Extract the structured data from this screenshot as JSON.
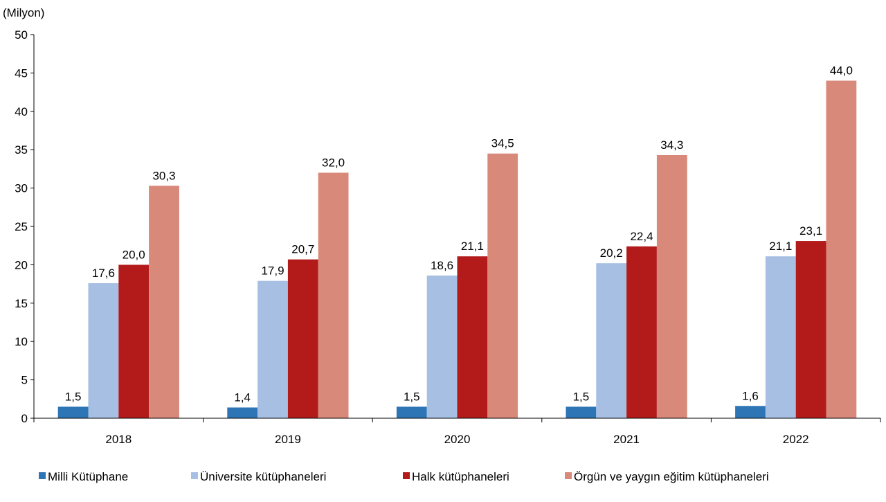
{
  "chart_data": {
    "type": "bar",
    "ylabel": "(Milyon)",
    "ylim": [
      0,
      50
    ],
    "yticks": [
      0,
      5,
      10,
      15,
      20,
      25,
      30,
      35,
      40,
      45,
      50
    ],
    "categories": [
      "2018",
      "2019",
      "2020",
      "2021",
      "2022"
    ],
    "legend_position": "bottom",
    "grid": false,
    "series": [
      {
        "name": "Milli Kütüphane",
        "color": "#2e75b6",
        "values": [
          1.5,
          1.4,
          1.5,
          1.5,
          1.6
        ],
        "labels": [
          "1,5",
          "1,4",
          "1,5",
          "1,5",
          "1,6"
        ]
      },
      {
        "name": "Üniversite kütüphaneleri",
        "color": "#a6bfe3",
        "values": [
          17.6,
          17.9,
          18.6,
          20.2,
          21.1
        ],
        "labels": [
          "17,6",
          "17,9",
          "18,6",
          "20,2",
          "21,1"
        ]
      },
      {
        "name": "Halk kütüphaneleri",
        "color": "#b31b1b",
        "values": [
          20.0,
          20.7,
          21.1,
          22.4,
          23.1
        ],
        "labels": [
          "20,0",
          "20,7",
          "21,1",
          "22,4",
          "23,1"
        ]
      },
      {
        "name": "Örgün ve yaygın eğitim kütüphaneleri",
        "color": "#d9897a",
        "values": [
          30.3,
          32.0,
          34.5,
          34.3,
          44.0
        ],
        "labels": [
          "30,3",
          "32,0",
          "34,5",
          "34,3",
          "44,0"
        ]
      }
    ]
  }
}
